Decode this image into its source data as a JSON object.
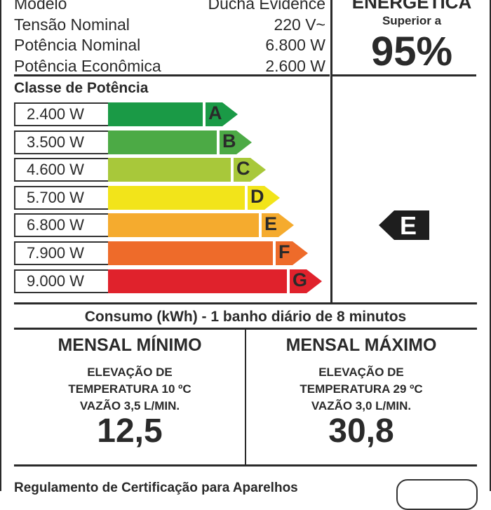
{
  "specs": [
    {
      "label": "Modelo",
      "value": "Ducha Evidence"
    },
    {
      "label": "Tensão Nominal",
      "value": "220 V~"
    },
    {
      "label": "Potência Nominal",
      "value": "6.800 W"
    },
    {
      "label": "Potência Econômica",
      "value": "2.600 W"
    }
  ],
  "efficiency": {
    "title": "ENERGÉTICA",
    "subtitle": "Superior a",
    "value": "95%"
  },
  "power_class": {
    "title": "Classe de Potência",
    "rows": [
      {
        "watts": "2.400 W",
        "letter": "A",
        "color": "#1a9a46"
      },
      {
        "watts": "3.500 W",
        "letter": "B",
        "color": "#4caa45"
      },
      {
        "watts": "4.600 W",
        "letter": "C",
        "color": "#a8c83a"
      },
      {
        "watts": "5.700 W",
        "letter": "D",
        "color": "#f2e41a"
      },
      {
        "watts": "6.800 W",
        "letter": "E",
        "color": "#f5ab2e"
      },
      {
        "watts": "7.900 W",
        "letter": "F",
        "color": "#ee6b2a"
      },
      {
        "watts": "9.000 W",
        "letter": "G",
        "color": "#e0222c"
      }
    ],
    "selected": "E"
  },
  "consumption": {
    "title": "Consumo (kWh) - 1 banho diário de 8 minutos",
    "min": {
      "title": "MENSAL MÍNIMO",
      "line1": "ELEVAÇÃO DE",
      "line2": "TEMPERATURA 10 ºC",
      "line3": "VAZÃO 3,5 L/MIN.",
      "value": "12,5"
    },
    "max": {
      "title": "MENSAL MÁXIMO",
      "line1": "ELEVAÇÃO DE",
      "line2": "TEMPERATURA 29 ºC",
      "line3": "VAZÃO 3,0 L/MIN.",
      "value": "30,8"
    }
  },
  "footer": {
    "text": "Regulamento de Certificação para Aparelhos"
  }
}
